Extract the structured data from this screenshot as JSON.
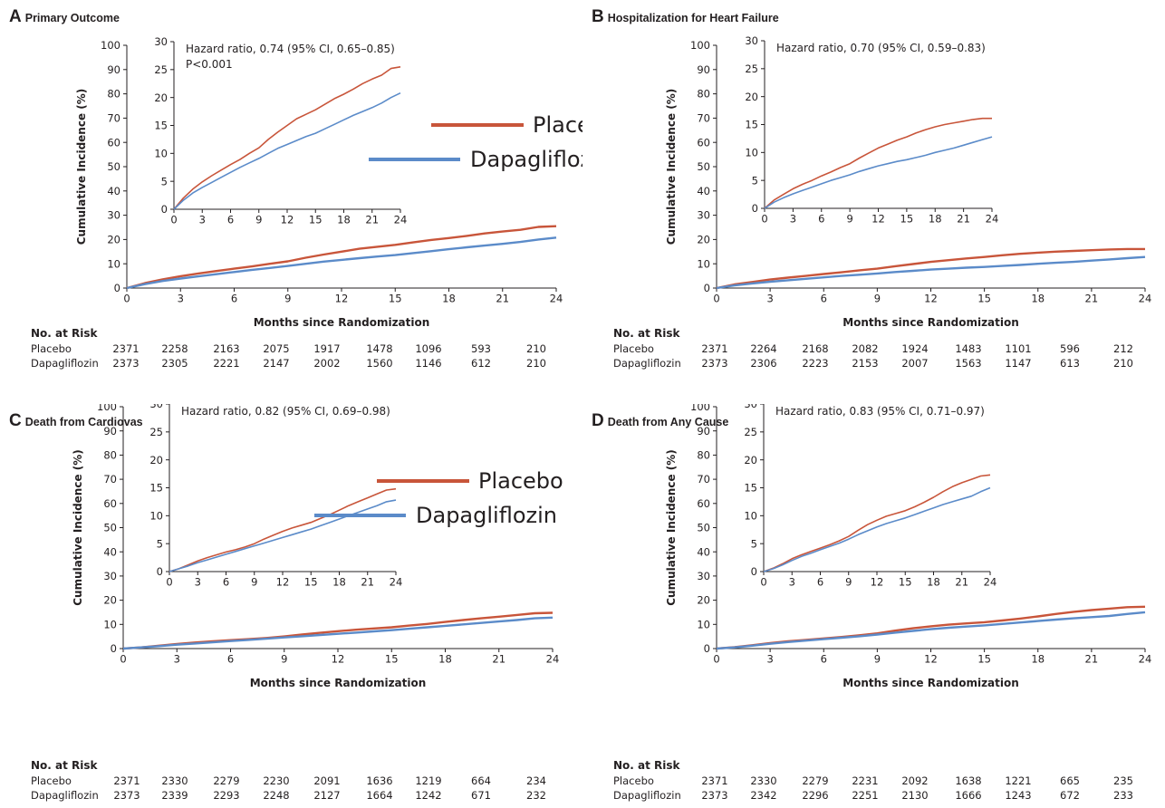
{
  "chart_data": [
    {
      "type": "line",
      "panel_letter": "A",
      "title": "Primary Outcome",
      "xlabel": "Months since Randomization",
      "ylabel": "Cumulative Incidence (%)",
      "xlim": [
        0,
        24
      ],
      "ylim": [
        0,
        100
      ],
      "xticks": [
        0,
        3,
        6,
        9,
        12,
        15,
        18,
        21,
        24
      ],
      "yticks": [
        0,
        10,
        20,
        30,
        40,
        50,
        60,
        70,
        80,
        90,
        100
      ],
      "series": [
        {
          "name": "Placebo",
          "color": "#c8553a",
          "x": [
            0,
            1,
            2,
            3,
            4,
            5,
            6,
            7,
            8,
            9,
            10,
            11,
            12,
            13,
            14,
            15,
            16,
            17,
            18,
            19,
            20,
            21,
            22,
            23,
            24
          ],
          "y": [
            0,
            2.0,
            3.6,
            4.9,
            6.0,
            7.0,
            8.0,
            8.9,
            10.0,
            11.0,
            12.5,
            13.8,
            15.0,
            16.2,
            17.0,
            17.8,
            18.8,
            19.8,
            20.6,
            21.5,
            22.5,
            23.3,
            24.0,
            25.2,
            25.5
          ]
        },
        {
          "name": "Dapagliflozin",
          "color": "#5b8bc9",
          "x": [
            0,
            1,
            2,
            3,
            4,
            5,
            6,
            7,
            8,
            9,
            10,
            11,
            12,
            13,
            14,
            15,
            16,
            17,
            18,
            19,
            20,
            21,
            22,
            23,
            24
          ],
          "y": [
            0,
            1.6,
            2.9,
            3.9,
            4.8,
            5.7,
            6.6,
            7.5,
            8.3,
            9.1,
            10.0,
            10.9,
            11.6,
            12.3,
            13.0,
            13.6,
            14.4,
            15.2,
            16.0,
            16.8,
            17.5,
            18.2,
            19.0,
            20.0,
            20.8
          ]
        }
      ],
      "inset": {
        "xlim": [
          0,
          24
        ],
        "ylim": [
          0,
          30
        ],
        "xticks": [
          0,
          3,
          6,
          9,
          12,
          15,
          18,
          21,
          24
        ],
        "yticks": [
          0,
          5,
          10,
          15,
          20,
          25,
          30
        ],
        "annotation": [
          "Hazard ratio, 0.74 (95% CI, 0.65–0.85)",
          "P<0.001"
        ]
      },
      "legend": true,
      "risk": {
        "title": "No. at Risk",
        "rows": [
          {
            "label": "Placebo",
            "values": [
              "2371",
              "2258",
              "2163",
              "2075",
              "1917",
              "1478",
              "1096",
              "593",
              "210"
            ]
          },
          {
            "label": "Dapagliflozin",
            "values": [
              "2373",
              "2305",
              "2221",
              "2147",
              "2002",
              "1560",
              "1146",
              "612",
              "210"
            ]
          }
        ]
      }
    },
    {
      "type": "line",
      "panel_letter": "B",
      "title": "Hospitalization for Heart Failure",
      "xlabel": "Months since Randomization",
      "ylabel": "Cumulative Incidence (%)",
      "xlim": [
        0,
        24
      ],
      "ylim": [
        0,
        100
      ],
      "xticks": [
        0,
        3,
        6,
        9,
        12,
        15,
        18,
        21,
        24
      ],
      "yticks": [
        0,
        10,
        20,
        30,
        40,
        50,
        60,
        70,
        80,
        90,
        100
      ],
      "series": [
        {
          "name": "Placebo",
          "color": "#c8553a",
          "x": [
            0,
            1,
            2,
            3,
            4,
            5,
            6,
            7,
            8,
            9,
            10,
            11,
            12,
            13,
            14,
            15,
            16,
            17,
            18,
            19,
            20,
            21,
            22,
            23,
            24
          ],
          "y": [
            0,
            1.5,
            2.5,
            3.5,
            4.3,
            5.0,
            5.8,
            6.5,
            7.3,
            8.0,
            9.0,
            9.9,
            10.8,
            11.5,
            12.2,
            12.8,
            13.5,
            14.1,
            14.6,
            15.0,
            15.3,
            15.6,
            15.9,
            16.1,
            16.1
          ]
        },
        {
          "name": "Dapagliflozin",
          "color": "#5b8bc9",
          "x": [
            0,
            1,
            2,
            3,
            4,
            5,
            6,
            7,
            8,
            9,
            10,
            11,
            12,
            13,
            14,
            15,
            16,
            17,
            18,
            19,
            20,
            21,
            22,
            23,
            24
          ],
          "y": [
            0,
            1.1,
            1.9,
            2.6,
            3.2,
            3.8,
            4.4,
            5.0,
            5.5,
            6.0,
            6.6,
            7.1,
            7.6,
            8.0,
            8.4,
            8.7,
            9.1,
            9.5,
            10.0,
            10.4,
            10.8,
            11.3,
            11.8,
            12.3,
            12.8
          ]
        }
      ],
      "inset": {
        "xlim": [
          0,
          24
        ],
        "ylim": [
          0,
          30
        ],
        "xticks": [
          0,
          3,
          6,
          9,
          12,
          15,
          18,
          21,
          24
        ],
        "yticks": [
          0,
          5,
          10,
          15,
          20,
          25,
          30
        ],
        "annotation": [
          "Hazard ratio, 0.70 (95% CI, 0.59–0.83)"
        ]
      },
      "legend": false,
      "risk": {
        "title": "No. at Risk",
        "rows": [
          {
            "label": "Placebo",
            "values": [
              "2371",
              "2264",
              "2168",
              "2082",
              "1924",
              "1483",
              "1101",
              "596",
              "212"
            ]
          },
          {
            "label": "Dapagliflozin",
            "values": [
              "2373",
              "2306",
              "2223",
              "2153",
              "2007",
              "1563",
              "1147",
              "613",
              "210"
            ]
          }
        ]
      }
    },
    {
      "type": "line",
      "panel_letter": "C",
      "title": "Death from Cardiovascular Causes",
      "xlabel": "Months since Randomization",
      "ylabel": "Cumulative Incidence (%)",
      "xlim": [
        0,
        24
      ],
      "ylim": [
        0,
        100
      ],
      "xticks": [
        0,
        3,
        6,
        9,
        12,
        15,
        18,
        21,
        24
      ],
      "yticks": [
        0,
        10,
        20,
        30,
        40,
        50,
        60,
        70,
        80,
        90,
        100
      ],
      "series": [
        {
          "name": "Placebo",
          "color": "#c8553a",
          "x": [
            0,
            1,
            2,
            3,
            4,
            5,
            6,
            7,
            8,
            9,
            10,
            11,
            12,
            13,
            14,
            15,
            16,
            17,
            18,
            19,
            20,
            21,
            22,
            23,
            24
          ],
          "y": [
            0,
            0.5,
            1.2,
            1.9,
            2.5,
            3.0,
            3.5,
            3.9,
            4.4,
            5.0,
            5.8,
            6.5,
            7.2,
            7.8,
            8.3,
            8.8,
            9.5,
            10.2,
            11.0,
            11.8,
            12.5,
            13.2,
            13.9,
            14.6,
            14.8
          ]
        },
        {
          "name": "Dapagliflozin",
          "color": "#5b8bc9",
          "x": [
            0,
            1,
            2,
            3,
            4,
            5,
            6,
            7,
            8,
            9,
            10,
            11,
            12,
            13,
            14,
            15,
            16,
            17,
            18,
            19,
            20,
            21,
            22,
            23,
            24
          ],
          "y": [
            0,
            0.5,
            1.0,
            1.6,
            2.1,
            2.6,
            3.1,
            3.6,
            4.1,
            4.6,
            5.1,
            5.6,
            6.1,
            6.6,
            7.1,
            7.6,
            8.2,
            8.8,
            9.4,
            10.0,
            10.6,
            11.2,
            11.8,
            12.5,
            12.8
          ]
        }
      ],
      "inset": {
        "xlim": [
          0,
          24
        ],
        "ylim": [
          0,
          30
        ],
        "xticks": [
          0,
          3,
          6,
          9,
          12,
          15,
          18,
          21,
          24
        ],
        "yticks": [
          0,
          5,
          10,
          15,
          20,
          25,
          30
        ],
        "annotation": [
          "Hazard ratio, 0.82 (95% CI, 0.69–0.98)"
        ]
      },
      "legend": true,
      "risk": {
        "title": "No. at Risk",
        "rows": [
          {
            "label": "Placebo",
            "values": [
              "2371",
              "2330",
              "2279",
              "2230",
              "2091",
              "1636",
              "1219",
              "664",
              "234"
            ]
          },
          {
            "label": "Dapagliflozin",
            "values": [
              "2373",
              "2339",
              "2293",
              "2248",
              "2127",
              "1664",
              "1242",
              "671",
              "232"
            ]
          }
        ]
      }
    },
    {
      "type": "line",
      "panel_letter": "D",
      "title": "Death from Any Cause",
      "xlabel": "Months since Randomization",
      "ylabel": "Cumulative Incidence (%)",
      "xlim": [
        0,
        24
      ],
      "ylim": [
        0,
        100
      ],
      "xticks": [
        0,
        3,
        6,
        9,
        12,
        15,
        18,
        21,
        24
      ],
      "yticks": [
        0,
        10,
        20,
        30,
        40,
        50,
        60,
        70,
        80,
        90,
        100
      ],
      "series": [
        {
          "name": "Placebo",
          "color": "#c8553a",
          "x": [
            0,
            1,
            2,
            3,
            4,
            5,
            6,
            7,
            8,
            9,
            10,
            11,
            12,
            13,
            14,
            15,
            16,
            17,
            18,
            19,
            20,
            21,
            22,
            23,
            24
          ],
          "y": [
            0,
            0.6,
            1.4,
            2.3,
            3.0,
            3.6,
            4.2,
            4.8,
            5.5,
            6.3,
            7.4,
            8.4,
            9.2,
            9.9,
            10.4,
            10.9,
            11.6,
            12.4,
            13.3,
            14.3,
            15.2,
            15.9,
            16.5,
            17.1,
            17.3
          ]
        },
        {
          "name": "Dapagliflozin",
          "color": "#5b8bc9",
          "x": [
            0,
            1,
            2,
            3,
            4,
            5,
            6,
            7,
            8,
            9,
            10,
            11,
            12,
            13,
            14,
            15,
            16,
            17,
            18,
            19,
            20,
            21,
            22,
            23,
            24
          ],
          "y": [
            0,
            0.5,
            1.2,
            2.0,
            2.7,
            3.3,
            3.9,
            4.5,
            5.1,
            5.8,
            6.6,
            7.3,
            8.0,
            8.6,
            9.1,
            9.6,
            10.2,
            10.8,
            11.4,
            12.0,
            12.5,
            13.0,
            13.5,
            14.3,
            15.0
          ]
        }
      ],
      "inset": {
        "xlim": [
          0,
          24
        ],
        "ylim": [
          0,
          30
        ],
        "xticks": [
          0,
          3,
          6,
          9,
          12,
          15,
          18,
          21,
          24
        ],
        "yticks": [
          0,
          5,
          10,
          15,
          20,
          25,
          30
        ],
        "annotation": [
          "Hazard ratio, 0.83 (95% CI, 0.71–0.97)"
        ]
      },
      "legend": false,
      "risk": {
        "title": "No. at Risk",
        "rows": [
          {
            "label": "Placebo",
            "values": [
              "2371",
              "2330",
              "2279",
              "2231",
              "2092",
              "1638",
              "1221",
              "665",
              "235"
            ]
          },
          {
            "label": "Dapagliflozin",
            "values": [
              "2373",
              "2342",
              "2296",
              "2251",
              "2130",
              "1666",
              "1243",
              "672",
              "233"
            ]
          }
        ]
      }
    }
  ]
}
